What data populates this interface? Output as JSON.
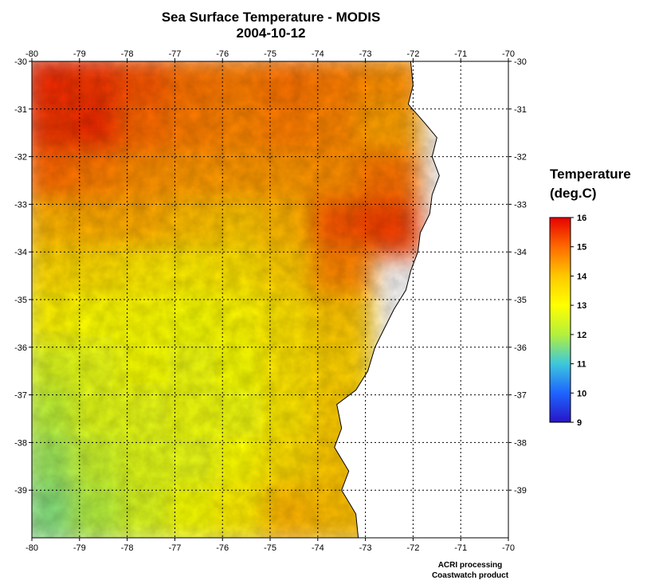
{
  "title": "Sea Surface Temperature - MODIS",
  "subtitle": "2004-10-12",
  "legend": {
    "title_line1": "Temperature",
    "title_line2": "(deg.C)",
    "min": 9,
    "max": 16,
    "ticks": [
      "16",
      "15",
      "14",
      "13",
      "12",
      "11",
      "10",
      "9"
    ],
    "colors": [
      "#e60000",
      "#ff6a00",
      "#ffc800",
      "#ffff00",
      "#b4f03c",
      "#3cc8dc",
      "#1e64ff",
      "#2814c8"
    ]
  },
  "credits": {
    "line1": "ACRI processing",
    "line2": "Coastwatch product"
  },
  "chart_data": {
    "type": "heatmap",
    "title": "Sea Surface Temperature - MODIS",
    "subtitle": "2004-10-12",
    "x_axis": {
      "range": [
        -80,
        -70
      ],
      "ticks": [
        "-80",
        "-79",
        "-78",
        "-77",
        "-76",
        "-75",
        "-74",
        "-73",
        "-72",
        "-71",
        "-70"
      ]
    },
    "y_axis": {
      "range": [
        -40,
        -30
      ],
      "ticks": [
        "-30",
        "-31",
        "-32",
        "-33",
        "-34",
        "-35",
        "-36",
        "-37",
        "-38",
        "-39"
      ]
    },
    "grid": true,
    "colorscale": {
      "min": 9,
      "max": 16,
      "unit": "deg.C"
    },
    "grid_values": {
      "lon": [
        -79.5,
        -78.5,
        -77.5,
        -76.5,
        -75.5,
        -74.5,
        -73.5,
        -72.5,
        -71.5
      ],
      "lat": [
        -30.5,
        -31.5,
        -32.5,
        -33.5,
        -34.5,
        -35.5,
        -36.5,
        -37.5,
        -38.5,
        -39.5
      ],
      "sst": [
        [
          15.6,
          15.5,
          15.2,
          14.9,
          14.8,
          14.9,
          14.8,
          14.6,
          null
        ],
        [
          15.5,
          15.6,
          15.0,
          14.8,
          14.7,
          14.8,
          14.7,
          14.4,
          null
        ],
        [
          15.0,
          14.8,
          14.6,
          14.5,
          14.5,
          14.5,
          14.6,
          14.9,
          null
        ],
        [
          14.2,
          14.3,
          14.3,
          14.1,
          14.0,
          14.2,
          15.2,
          15.4,
          null
        ],
        [
          13.7,
          13.6,
          13.4,
          13.3,
          13.5,
          13.9,
          14.7,
          null,
          null
        ],
        [
          13.2,
          13.0,
          13.0,
          12.9,
          13.1,
          13.5,
          14.0,
          null,
          null
        ],
        [
          12.5,
          12.7,
          12.9,
          12.8,
          12.9,
          13.5,
          13.8,
          null,
          null
        ],
        [
          12.1,
          12.6,
          12.7,
          12.8,
          12.8,
          13.4,
          13.9,
          null,
          null
        ],
        [
          11.8,
          12.3,
          12.6,
          12.7,
          13.0,
          13.6,
          14.0,
          null,
          null
        ],
        [
          11.6,
          12.0,
          12.5,
          12.9,
          13.3,
          14.2,
          14.1,
          null,
          null
        ]
      ]
    },
    "coastline": [
      [
        -72.05,
        -30.0
      ],
      [
        -72.0,
        -30.5
      ],
      [
        -72.1,
        -30.9
      ],
      [
        -71.75,
        -31.3
      ],
      [
        -71.5,
        -31.6
      ],
      [
        -71.6,
        -32.0
      ],
      [
        -71.45,
        -32.4
      ],
      [
        -71.6,
        -32.8
      ],
      [
        -71.65,
        -33.2
      ],
      [
        -71.85,
        -33.6
      ],
      [
        -71.9,
        -34.0
      ],
      [
        -72.05,
        -34.4
      ],
      [
        -72.15,
        -34.8
      ],
      [
        -72.4,
        -35.2
      ],
      [
        -72.6,
        -35.6
      ],
      [
        -72.8,
        -36.0
      ],
      [
        -72.95,
        -36.5
      ],
      [
        -73.2,
        -36.9
      ],
      [
        -73.6,
        -37.2
      ],
      [
        -73.5,
        -37.7
      ],
      [
        -73.65,
        -38.1
      ],
      [
        -73.35,
        -38.6
      ],
      [
        -73.5,
        -39.0
      ],
      [
        -73.2,
        -39.5
      ],
      [
        -73.15,
        -40.0
      ]
    ]
  }
}
